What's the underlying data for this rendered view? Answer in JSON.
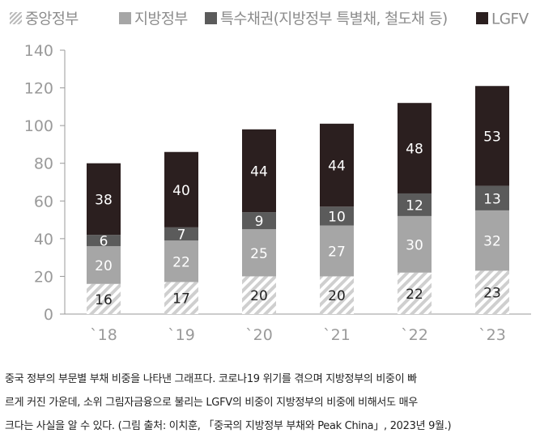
{
  "chart_data": {
    "type": "bar",
    "stacked": true,
    "categories": [
      "`18",
      "`19",
      "`20",
      "`21",
      "`22",
      "`23"
    ],
    "series": [
      {
        "name": "중앙정부",
        "values": [
          16,
          17,
          20,
          20,
          22,
          23
        ],
        "color": "#c8c8c8",
        "pattern": "diagonal-hatch"
      },
      {
        "name": "지방정부",
        "values": [
          20,
          22,
          25,
          27,
          30,
          32
        ],
        "color": "#a6a6a6"
      },
      {
        "name": "특수채권(지방정부 특별채, 철도채 등)",
        "values": [
          6,
          7,
          9,
          10,
          12,
          13
        ],
        "color": "#5b5b5b"
      },
      {
        "name": "LGFV",
        "values": [
          38,
          40,
          44,
          44,
          48,
          53
        ],
        "color": "#2b1f1f"
      }
    ],
    "yticks": [
      0,
      20,
      40,
      60,
      80,
      100,
      120,
      140
    ],
    "ylim": [
      0,
      140
    ],
    "grid": false,
    "legend": "top"
  },
  "caption": {
    "line1": "중국 정부의 부문별 부채 비중을 나타낸 그래프다. 코로나19 위기를 겪으며 지방정부의 비중이 빠",
    "line2": "르게 커진 가운데, 소위 그림자금융으로 불리는 LGFV의 비중이 지방정부의 비중에 비해서도 매우",
    "line3": "크다는 사실을 알 수 있다. (그림 출처: 이치훈, 「중국의 지방정부 부채와 Peak China」, 2023년 9월.)"
  }
}
